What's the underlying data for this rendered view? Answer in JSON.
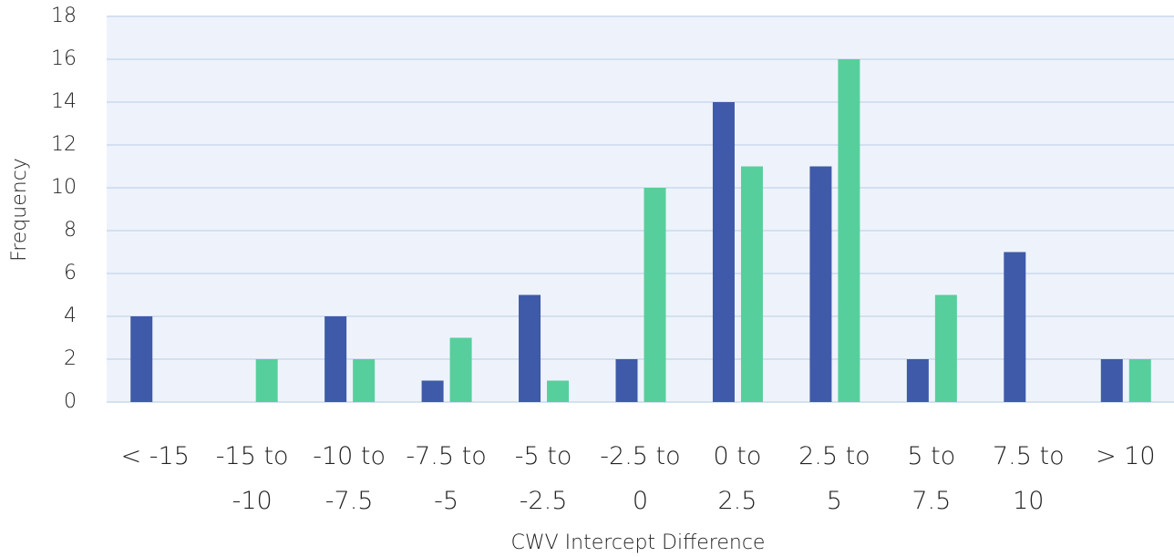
{
  "chart_data": {
    "type": "bar",
    "x_label": "CWV Intercept Difference",
    "y_label": "Frequency",
    "categories": [
      "< -15",
      "-15 to -10",
      "-10 to -7.5",
      "-7.5 to -5",
      "-5 to -2.5",
      "-2.5 to 0",
      "0 to 2.5",
      "2.5 to 5",
      "5 to 7.5",
      "7.5 to 10",
      "> 10"
    ],
    "series": [
      {
        "color": "#3f5aa8",
        "values": [
          4,
          0,
          4,
          1,
          5,
          2,
          14,
          11,
          2,
          7,
          2
        ]
      },
      {
        "color": "#56cf9c",
        "values": [
          0,
          2,
          2,
          3,
          1,
          10,
          11,
          16,
          5,
          0,
          2
        ]
      }
    ],
    "ylim": [
      0,
      18
    ],
    "yticks": [
      0,
      2,
      4,
      6,
      8,
      10,
      12,
      14,
      16,
      18
    ],
    "grid": true
  }
}
